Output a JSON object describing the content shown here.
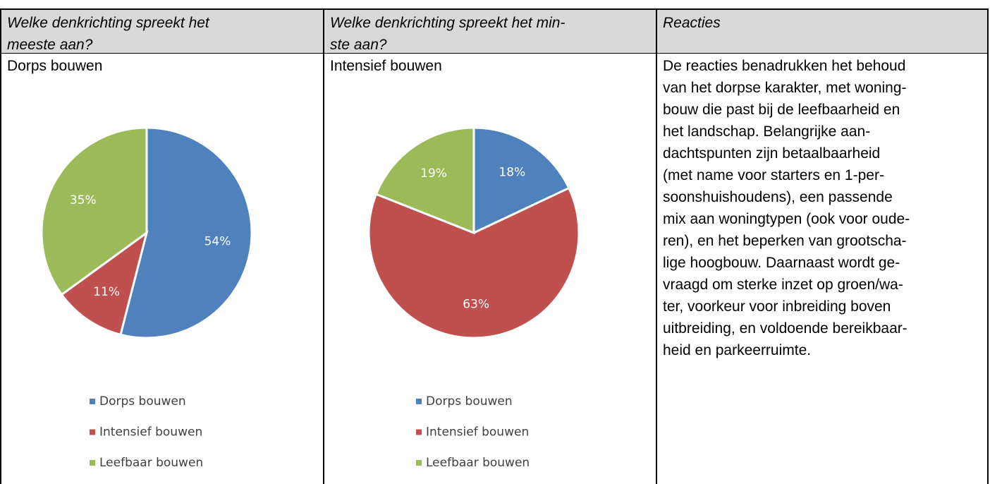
{
  "table": {
    "headers": [
      {
        "lines": [
          "Welke denkrichting spreekt het",
          "meeste aan?"
        ]
      },
      {
        "lines": [
          "Welke denkrichting spreekt het min-",
          "ste aan?"
        ]
      },
      {
        "lines": [
          "Reacties"
        ]
      }
    ],
    "cells": [
      {
        "text": "Dorps bouwen",
        "chart": {
          "type": "pie",
          "categories": [
            "Dorps bouwen",
            "Intensief bouwen",
            "Leefbaar bouwen"
          ],
          "values": [
            54,
            11,
            35
          ],
          "value_labels": [
            "54%",
            "11%",
            "35%"
          ],
          "colors": [
            "#4f81bd",
            "#c0504d",
            "#9bbb59"
          ]
        }
      },
      {
        "text": "Intensief bouwen",
        "chart": {
          "type": "pie",
          "categories": [
            "Dorps bouwen",
            "Intensief bouwen",
            "Leefbaar bouwen"
          ],
          "values": [
            18,
            63,
            19
          ],
          "value_labels": [
            "18%",
            "63%",
            "19%"
          ],
          "colors": [
            "#4f81bd",
            "#c0504d",
            "#9bbb59"
          ]
        }
      },
      {
        "lines": [
          "De reacties benadrukken het behoud",
          "van het dorpse karakter, met woning-",
          "bouw die past bij de leefbaarheid en",
          "het landschap. Belangrijke aan-",
          "dachtspunten zijn betaalbaarheid",
          "(met name voor starters en 1-per-",
          "soonshuishoudens), een passende",
          "mix aan woningtypen (ook voor oude-",
          "ren), en het beperken van grootscha-",
          "lige hoogbouw. Daarnaast wordt ge-",
          "vraagd om sterke inzet op groen/wa-",
          "ter, voorkeur voor inbreiding boven",
          "uitbreiding, en voldoende bereikbaar-",
          "heid en parkeerruimte."
        ]
      }
    ]
  }
}
